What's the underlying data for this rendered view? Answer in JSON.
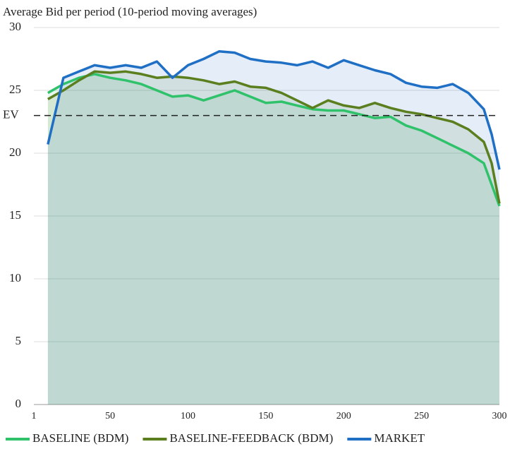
{
  "chart_data": {
    "type": "line",
    "title": "Average Bid per period (10-period moving averages)",
    "x": [
      10,
      20,
      30,
      40,
      50,
      60,
      70,
      80,
      90,
      100,
      110,
      120,
      130,
      140,
      150,
      160,
      170,
      180,
      190,
      200,
      210,
      220,
      230,
      240,
      250,
      260,
      270,
      280,
      290,
      295,
      300
    ],
    "series": [
      {
        "name": "BASELINE (BDM)",
        "color": "#2fc26a",
        "values": [
          24.8,
          25.5,
          26,
          26.3,
          26,
          25.8,
          25.5,
          25,
          24.5,
          24.6,
          24.2,
          24.6,
          25,
          24.5,
          24,
          24.1,
          23.8,
          23.5,
          23.4,
          23.4,
          23.1,
          22.8,
          22.9,
          22.2,
          21.8,
          21.2,
          20.6,
          20,
          19.2,
          17.5,
          15.8
        ]
      },
      {
        "name": "BASELINE-FEEDBACK (BDM)",
        "color": "#5b7f1f",
        "values": [
          24.3,
          25,
          25.8,
          26.5,
          26.4,
          26.5,
          26.3,
          26,
          26.1,
          26,
          25.8,
          25.5,
          25.7,
          25.3,
          25.2,
          24.8,
          24.2,
          23.6,
          24.2,
          23.8,
          23.6,
          24,
          23.6,
          23.3,
          23.1,
          22.8,
          22.5,
          21.9,
          20.9,
          19.2,
          16
        ]
      },
      {
        "name": "MARKET",
        "color": "#1f6fc5",
        "values": [
          20.7,
          26,
          26.5,
          27,
          26.8,
          27,
          26.8,
          27.3,
          26,
          27,
          27.5,
          28.1,
          28,
          27.5,
          27.3,
          27.2,
          27,
          27.3,
          26.8,
          27.4,
          27,
          26.6,
          26.3,
          25.6,
          25.3,
          25.2,
          25.5,
          24.8,
          23.5,
          21.5,
          18.7
        ]
      }
    ],
    "ev_line": {
      "label": "EV",
      "value": 23
    },
    "xlim": [
      1,
      300
    ],
    "xticks": [
      1,
      50,
      100,
      150,
      200,
      250,
      300
    ],
    "ylim": [
      0,
      30
    ],
    "yticks": [
      0,
      5,
      10,
      15,
      20,
      25,
      30
    ],
    "grid": true
  }
}
